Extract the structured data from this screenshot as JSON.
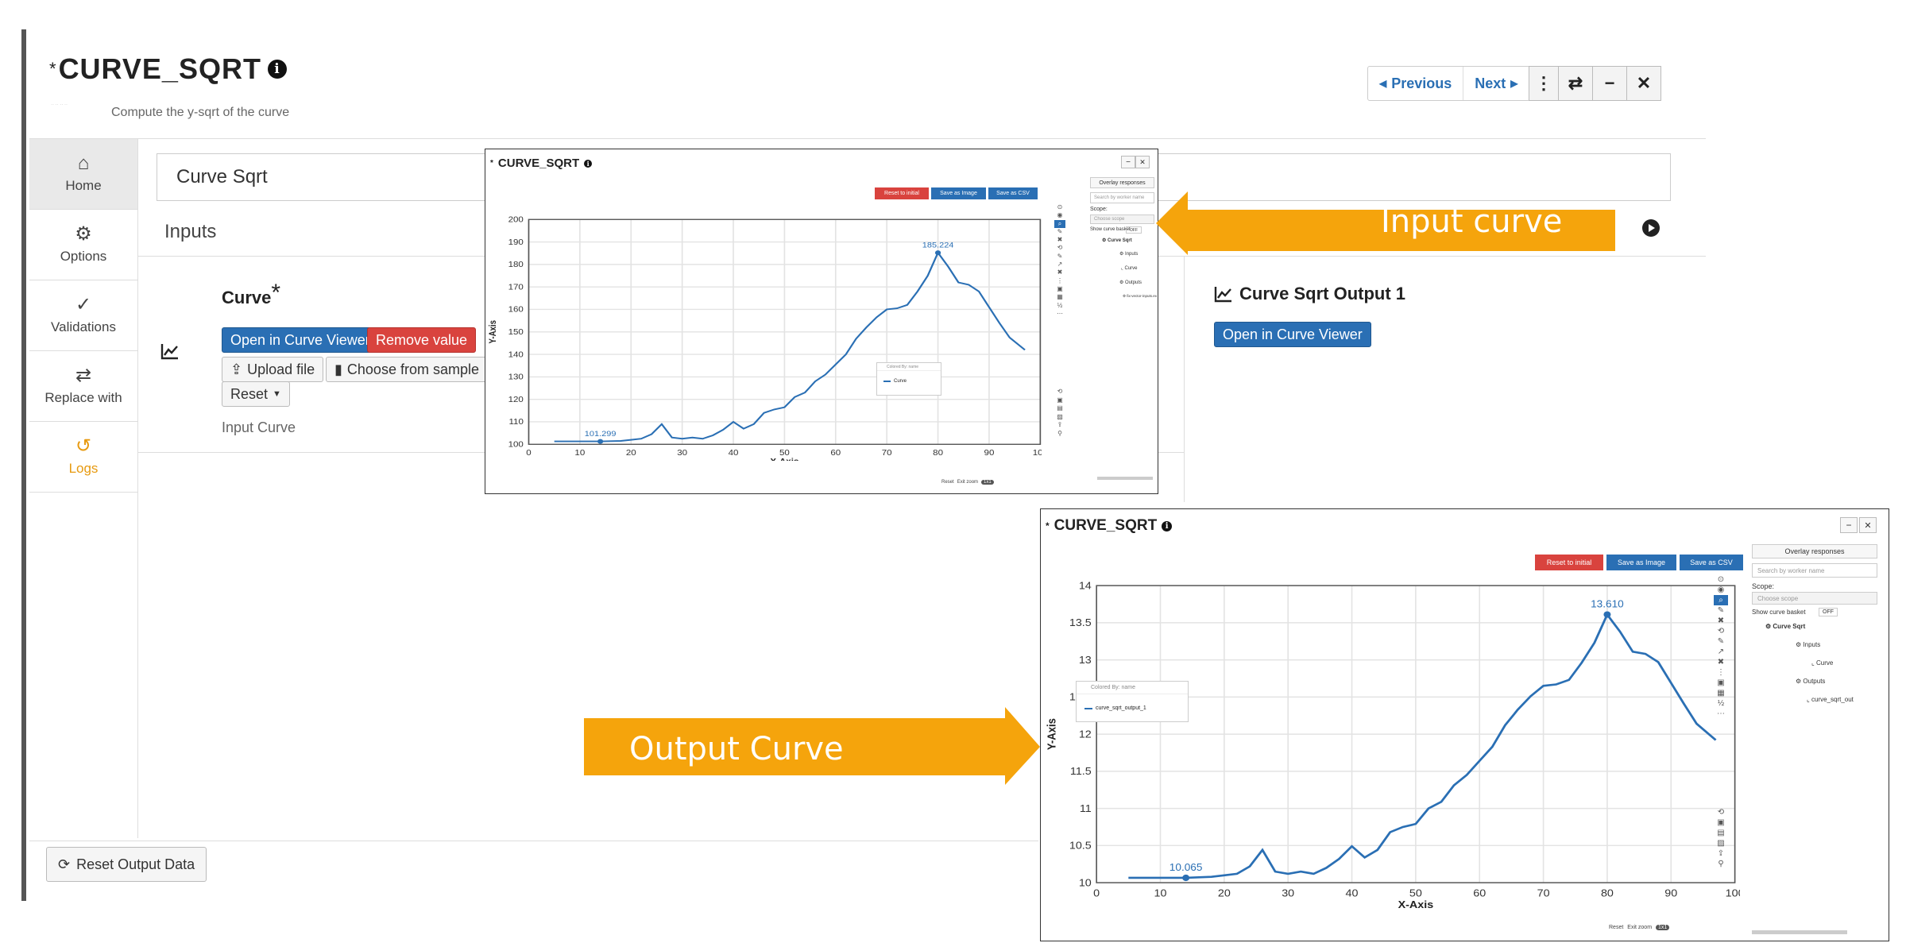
{
  "page": {
    "title": "CURVE_SQRT",
    "title_prefix": "*",
    "subtitle": "Compute the y-sqrt of the curve",
    "logo_text": "·· ·· ·· ··"
  },
  "nav": {
    "previous": "Previous",
    "next": "Next"
  },
  "toolbar": {
    "more": "⋮",
    "swap": "⇄",
    "minimize": "−",
    "close": "✕"
  },
  "sidebar": {
    "items": [
      {
        "label": "Home",
        "icon": "home-icon",
        "glyph": "⌂"
      },
      {
        "label": "Options",
        "icon": "gear-icon",
        "glyph": "⚙"
      },
      {
        "label": "Validations",
        "icon": "check-double-icon",
        "glyph": "✓"
      },
      {
        "label": "Replace with",
        "icon": "swap-icon",
        "glyph": "⇄"
      },
      {
        "label": "Logs",
        "icon": "history-icon",
        "glyph": "↺"
      }
    ]
  },
  "main": {
    "name_value": "Curve Sqrt",
    "inputs_label": "Inputs",
    "curve_label": "Curve",
    "curve_required": "*",
    "open_viewer": "Open in Curve Viewer",
    "remove_value": "Remove value",
    "upload_file": "Upload file",
    "choose_sample": "Choose from sample",
    "reset": "Reset",
    "input_caption": "Input Curve"
  },
  "output": {
    "title": "Curve Sqrt Output 1",
    "open_viewer": "Open in Curve Viewer"
  },
  "footer": {
    "reset_output": "Reset Output Data"
  },
  "banners": {
    "input": "Input curve",
    "output": "Output Curve",
    "color": "#f5a40c"
  },
  "popup_common": {
    "title": "CURVE_SQRT",
    "title_prefix": "*",
    "reset_initial": "Reset to initial",
    "save_image": "Save as Image",
    "save_csv": "Save as CSV",
    "overlay": "Overlay responses",
    "search_placeholder": "Search by worker name",
    "scope_label": "Scope:",
    "scope_placeholder": "Choose scope",
    "basket_label": "Show curve basket",
    "basket_toggle": "OFF",
    "tree_root": "Curve Sqrt",
    "tree_inputs": "Inputs",
    "tree_outputs": "Outputs",
    "colored_by": "Colored By: name",
    "x_label": "X-Axis",
    "y_label": "Y-Axis",
    "footer_reset": "Reset",
    "footer_exit_zoom": "Exit zoom",
    "footer_toggle": "1x1"
  },
  "popup_input": {
    "tree_input_item": "Curve",
    "tree_output_item": "fix-vector-inputs.ex",
    "legend_item": "Curve"
  },
  "popup_output": {
    "tree_input_item": "Curve",
    "tree_output_item": "curve_sqrt_out",
    "legend_item": "curve_sqrt_output_1"
  },
  "chart_data": [
    {
      "type": "line",
      "title": "",
      "xlabel": "X-Axis",
      "ylabel": "Y-Axis",
      "xlim": [
        0,
        100
      ],
      "ylim": [
        100,
        200
      ],
      "xticks": [
        0,
        10,
        20,
        30,
        40,
        50,
        60,
        70,
        80,
        90,
        100
      ],
      "yticks": [
        100,
        110,
        120,
        130,
        140,
        150,
        160,
        170,
        180,
        190,
        200
      ],
      "grid": true,
      "series": [
        {
          "name": "Curve",
          "color": "#2a6fb4",
          "x": [
            5,
            10,
            14,
            18,
            20,
            22,
            24,
            26,
            28,
            30,
            32,
            34,
            36,
            38,
            40,
            42,
            44,
            46,
            48,
            50,
            52,
            54,
            56,
            58,
            60,
            62,
            64,
            66,
            68,
            70,
            72,
            74,
            76,
            78,
            80,
            82,
            84,
            86,
            88,
            90,
            92,
            94,
            97
          ],
          "y": [
            101.3,
            101.3,
            101.299,
            101.5,
            102.0,
            102.5,
            104.5,
            109.0,
            103.0,
            102.5,
            103.0,
            102.5,
            104.0,
            106.5,
            110.0,
            107.0,
            109.0,
            114.0,
            115.5,
            116.5,
            121.0,
            123.0,
            128.0,
            131.0,
            135.5,
            140.0,
            147.0,
            152.0,
            156.5,
            160.0,
            160.5,
            162.0,
            168.0,
            175.0,
            185.224,
            179.0,
            172.0,
            171.0,
            168.0,
            161.0,
            154.0,
            147.5,
            142.0
          ]
        }
      ],
      "annotations": [
        {
          "text": "185.224",
          "x": 80,
          "y": 185.224
        },
        {
          "text": "101.299",
          "x": 14,
          "y": 101.299
        }
      ]
    },
    {
      "type": "line",
      "title": "",
      "xlabel": "X-Axis",
      "ylabel": "Y-Axis",
      "xlim": [
        0,
        100
      ],
      "ylim": [
        10,
        14
      ],
      "xticks": [
        0,
        10,
        20,
        30,
        40,
        50,
        60,
        70,
        80,
        90,
        100
      ],
      "yticks": [
        10,
        10.5,
        11,
        11.5,
        12,
        12.5,
        13,
        13.5,
        14
      ],
      "grid": true,
      "series": [
        {
          "name": "curve_sqrt_output_1",
          "color": "#2a6fb4",
          "x": [
            5,
            10,
            14,
            18,
            20,
            22,
            24,
            26,
            28,
            30,
            32,
            34,
            36,
            38,
            40,
            42,
            44,
            46,
            48,
            50,
            52,
            54,
            56,
            58,
            60,
            62,
            64,
            66,
            68,
            70,
            72,
            74,
            76,
            78,
            80,
            82,
            84,
            86,
            88,
            90,
            92,
            94,
            97
          ],
          "y": [
            10.065,
            10.065,
            10.065,
            10.08,
            10.1,
            10.12,
            10.22,
            10.44,
            10.15,
            10.12,
            10.15,
            10.12,
            10.2,
            10.32,
            10.49,
            10.34,
            10.44,
            10.68,
            10.75,
            10.79,
            11.0,
            11.09,
            11.31,
            11.45,
            11.64,
            11.83,
            12.12,
            12.33,
            12.51,
            12.65,
            12.67,
            12.73,
            12.96,
            13.23,
            13.61,
            13.38,
            13.11,
            13.08,
            12.97,
            12.69,
            12.41,
            12.14,
            11.92
          ]
        }
      ],
      "annotations": [
        {
          "text": "13.610",
          "x": 80,
          "y": 13.61
        },
        {
          "text": "10.065",
          "x": 14,
          "y": 10.065
        }
      ]
    }
  ]
}
